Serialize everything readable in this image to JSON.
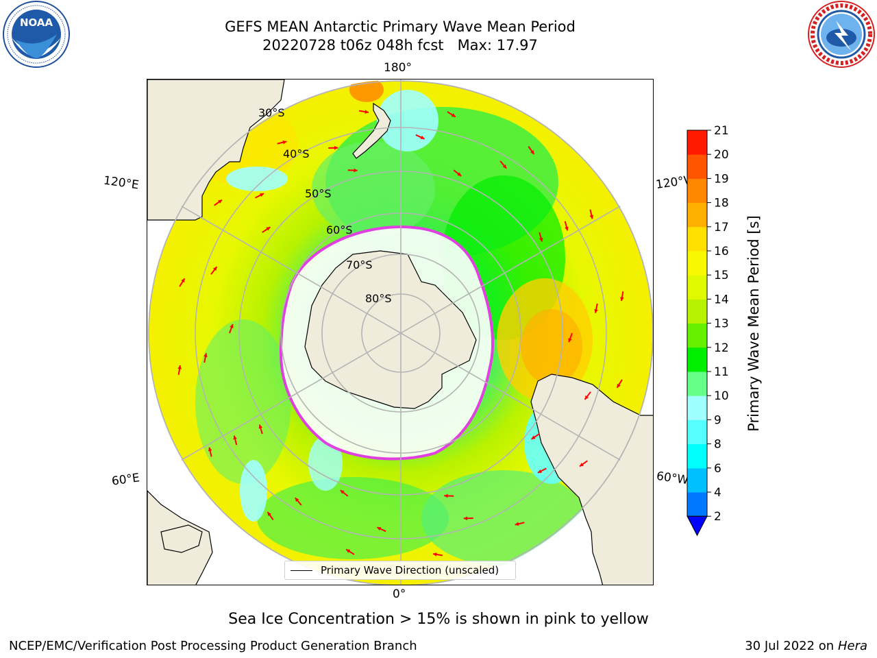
{
  "title": {
    "line1": "GEFS MEAN Antarctic Primary Wave Mean Period",
    "line2": "20220728 t06z 048h fcst   Max: 17.97"
  },
  "logos": {
    "left": {
      "name": "NOAA",
      "text": "NOAA",
      "ring_text": "NATIONAL OCEANIC AND ATMOSPHERIC ADMINISTRATION · U.S. DEPARTMENT OF COMMERCE"
    },
    "right": {
      "name": "National Weather Service",
      "ring_text": "NATIONAL WEATHER SERVICE"
    }
  },
  "map": {
    "projection": "south-polar-stereographic",
    "longitude_labels": {
      "top": "180°",
      "bottom": "0°",
      "upper_left": "120°E",
      "upper_right": "120°W",
      "lower_left": "60°E",
      "lower_right": "60°W"
    },
    "latitude_labels": [
      "30°S",
      "40°S",
      "50°S",
      "60°S",
      "70°S",
      "80°S"
    ],
    "legend": "Primary Wave Direction (unscaled)",
    "colors": {
      "land": "#efecdc",
      "ice": "#ffffff",
      "ice_edge": "#e040e0",
      "arrows": "#ff0000",
      "graticule": "#b4b4b4"
    }
  },
  "colorbar": {
    "label": "Primary Wave Mean Period [s]",
    "ticks": [
      "2",
      "4",
      "6",
      "8",
      "9",
      "10",
      "11",
      "12",
      "13",
      "14",
      "15",
      "16",
      "17",
      "18",
      "19",
      "20",
      "21"
    ],
    "colors": [
      "#0079ff",
      "#00c0ff",
      "#00ffff",
      "#55ffff",
      "#a0ffff",
      "#66ff88",
      "#00ee00",
      "#66f000",
      "#b8f200",
      "#e0f800",
      "#f8f800",
      "#ffe000",
      "#ffb000",
      "#ff8800",
      "#ff5500",
      "#ff1a00"
    ],
    "under_color": "#0000ff"
  },
  "caption": "Sea Ice Concentration > 15% is shown in pink to yellow",
  "footer": {
    "left": "NCEP/EMC/Verification Post Processing Product Generation Branch",
    "right_date": "30 Jul 2022 on ",
    "right_host": "Hera"
  }
}
